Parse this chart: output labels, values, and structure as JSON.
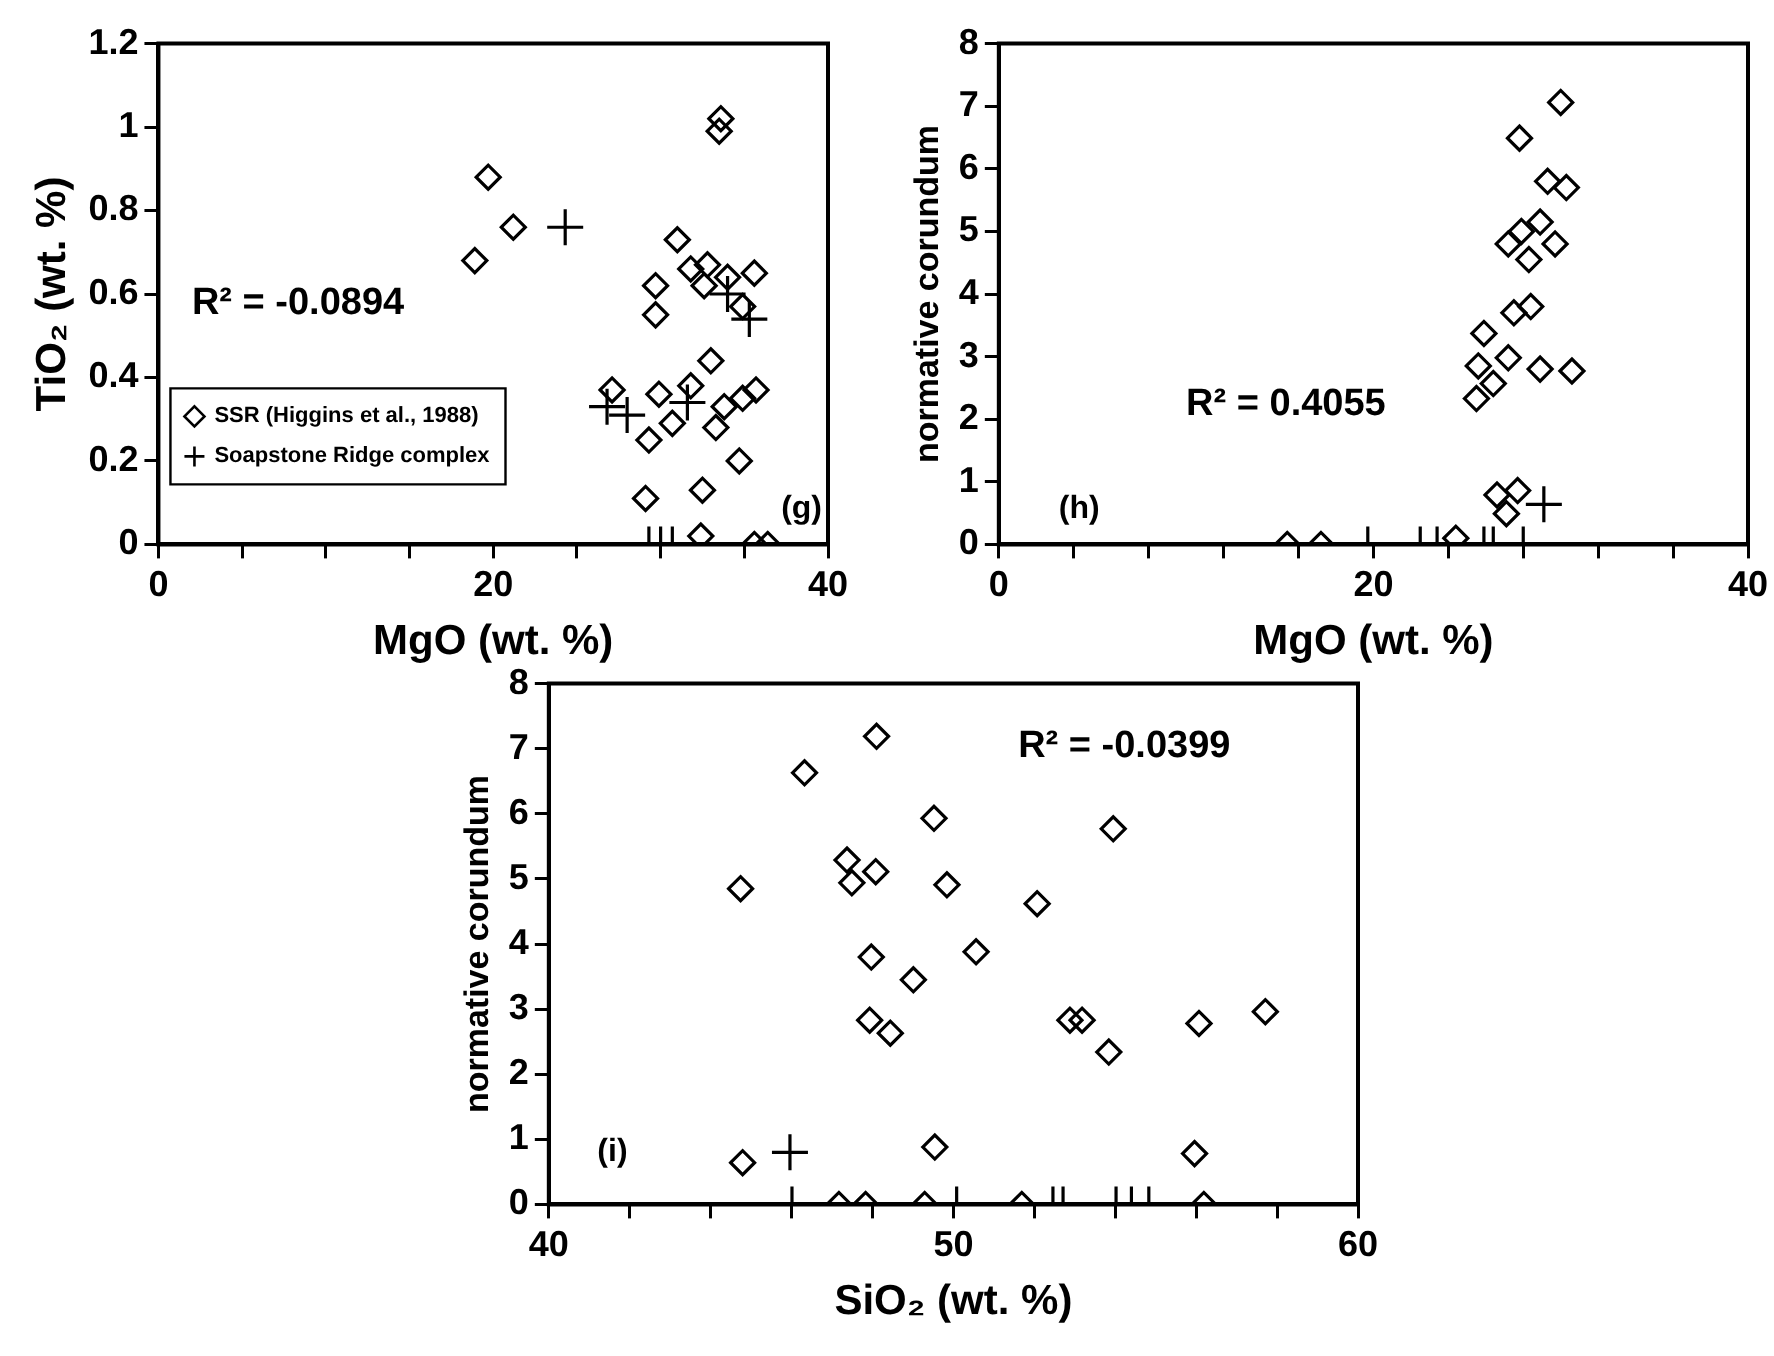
{
  "chart_data": [
    {
      "type": "scatter",
      "xlabel": "MgO (wt. %)",
      "ylabel": "TiO₂ (wt. %)",
      "annotations": [
        "R² = -0.0894",
        "(g)"
      ],
      "legend": "bottom left",
      "grid": false,
      "xlim": [
        0,
        40
      ],
      "xticks": [
        0,
        {
          "value": 5,
          "label": null
        },
        {
          "value": 10,
          "label": null
        },
        {
          "value": 15,
          "label": null
        },
        20,
        {
          "value": 25,
          "label": null
        },
        {
          "value": 30,
          "label": null
        },
        {
          "value": 35,
          "label": null
        },
        40
      ],
      "ylim": [
        0,
        1.2
      ],
      "yticks": [
        0,
        0.2,
        0.4,
        0.6,
        0.8,
        1,
        1.2
      ],
      "series": [
        {
          "name": "SSR (Higgins et al., 1988)",
          "color": "#000000",
          "marker": "diamond",
          "x": [
            33.6,
            33.5,
            19.7,
            21.2,
            18.9,
            31.0,
            29.7,
            31.8,
            32.8,
            34.0,
            35.6,
            32.6,
            34.9,
            29.7,
            33.0,
            27.1,
            29.9,
            31.8,
            35.7,
            34.9,
            33.8,
            30.7,
            29.3,
            33.3,
            34.7,
            32.5,
            29.1,
            32.4,
            35.6,
            36.4
          ],
          "values": [
            1.02,
            0.99,
            0.88,
            0.76,
            0.68,
            0.73,
            0.62,
            0.66,
            0.67,
            0.64,
            0.65,
            0.62,
            0.57,
            0.55,
            0.44,
            0.37,
            0.36,
            0.38,
            0.37,
            0.35,
            0.33,
            0.29,
            0.25,
            0.28,
            0.2,
            0.13,
            0.11,
            0.02,
            0,
            0
          ]
        },
        {
          "name": "Soapstone Ridge complex",
          "color": "#000000",
          "marker": "cross",
          "x": [
            24.3,
            26.8,
            28.0,
            31.6,
            34.0,
            35.3,
            29.3,
            30.0,
            30.7
          ],
          "values": [
            0.76,
            0.33,
            0.31,
            0.34,
            0.6,
            0.54,
            0,
            0,
            0
          ]
        }
      ]
    },
    {
      "type": "scatter",
      "xlabel": "MgO (wt. %)",
      "ylabel": "normative corundum",
      "annotations": [
        "R² = 0.4055",
        "(h)"
      ],
      "grid": false,
      "xlim": [
        0,
        40
      ],
      "xticks": [
        0,
        {
          "value": 4,
          "label": null
        },
        {
          "value": 8,
          "label": null
        },
        {
          "value": 12,
          "label": null
        },
        {
          "value": 16,
          "label": null
        },
        20,
        {
          "value": 24,
          "label": null
        },
        {
          "value": 28,
          "label": null
        },
        {
          "value": 32,
          "label": null
        },
        {
          "value": 36,
          "label": null
        },
        40
      ],
      "ylim": [
        0,
        8
      ],
      "yticks": [
        0,
        1,
        2,
        3,
        4,
        5,
        6,
        7,
        8
      ],
      "series": [
        {
          "color": "#000000",
          "marker": "diamond",
          "x": [
            30.0,
            27.8,
            29.3,
            30.3,
            28.9,
            27.9,
            27.2,
            28.3,
            29.7,
            28.4,
            27.5,
            25.9,
            25.6,
            27.2,
            28.9,
            30.6,
            26.4,
            25.5,
            26.6,
            27.7,
            27.1,
            15.4,
            17.2,
            24.4
          ],
          "values": [
            7.06,
            6.49,
            5.8,
            5.7,
            5.15,
            5.0,
            4.8,
            4.55,
            4.8,
            3.8,
            3.7,
            3.37,
            2.85,
            2.98,
            2.8,
            2.77,
            2.57,
            2.33,
            0.79,
            0.86,
            0.49,
            0,
            0,
            0.1
          ]
        },
        {
          "color": "#000000",
          "marker": "cross",
          "x": [
            29.1,
            19.7,
            22.5,
            23.4,
            25.9,
            26.4,
            28.0
          ],
          "values": [
            0.64,
            0,
            0,
            0,
            0,
            0,
            0
          ]
        }
      ]
    },
    {
      "type": "scatter",
      "xlabel": "SiO₂ (wt. %)",
      "ylabel": "normative corundum",
      "annotations": [
        "R² = -0.0399",
        "(i)"
      ],
      "grid": false,
      "xlim": [
        40,
        60
      ],
      "xticks": [
        40,
        {
          "value": 42,
          "label": null
        },
        {
          "value": 44,
          "label": null
        },
        {
          "value": 46,
          "label": null
        },
        {
          "value": 48,
          "label": null
        },
        50,
        {
          "value": 52,
          "label": null
        },
        {
          "value": 54,
          "label": null
        },
        {
          "value": 56,
          "label": null
        },
        {
          "value": 58,
          "label": null
        },
        60
      ],
      "ylim": [
        0,
        8
      ],
      "yticks": [
        0,
        1,
        2,
        3,
        4,
        5,
        6,
        7,
        8
      ],
      "series": [
        {
          "color": "#000000",
          "marker": "diamond",
          "x": [
            44.74,
            46.32,
            48.1,
            47.37,
            47.49,
            48.08,
            49.52,
            49.84,
            52.07,
            53.95,
            47.97,
            50.56,
            49.01,
            47.93,
            48.44,
            52.88,
            53.18,
            53.84,
            56.07,
            57.71,
            44.79,
            49.54,
            55.96,
            47.17,
            47.83,
            49.29,
            51.69,
            56.19
          ],
          "values": [
            4.85,
            6.63,
            7.19,
            5.29,
            4.94,
            5.11,
            5.93,
            4.91,
            4.62,
            5.77,
            3.8,
            3.88,
            3.45,
            2.83,
            2.63,
            2.83,
            2.83,
            2.34,
            2.78,
            2.96,
            0.64,
            0.88,
            0.78,
            0,
            0,
            0,
            0,
            0
          ]
        },
        {
          "color": "#000000",
          "marker": "cross",
          "x": [
            45.96,
            46.01,
            50.08,
            52.46,
            52.71,
            54.02,
            54.4,
            54.83
          ],
          "values": [
            0.8,
            0,
            0,
            0,
            0,
            0,
            0,
            0
          ]
        }
      ]
    }
  ]
}
